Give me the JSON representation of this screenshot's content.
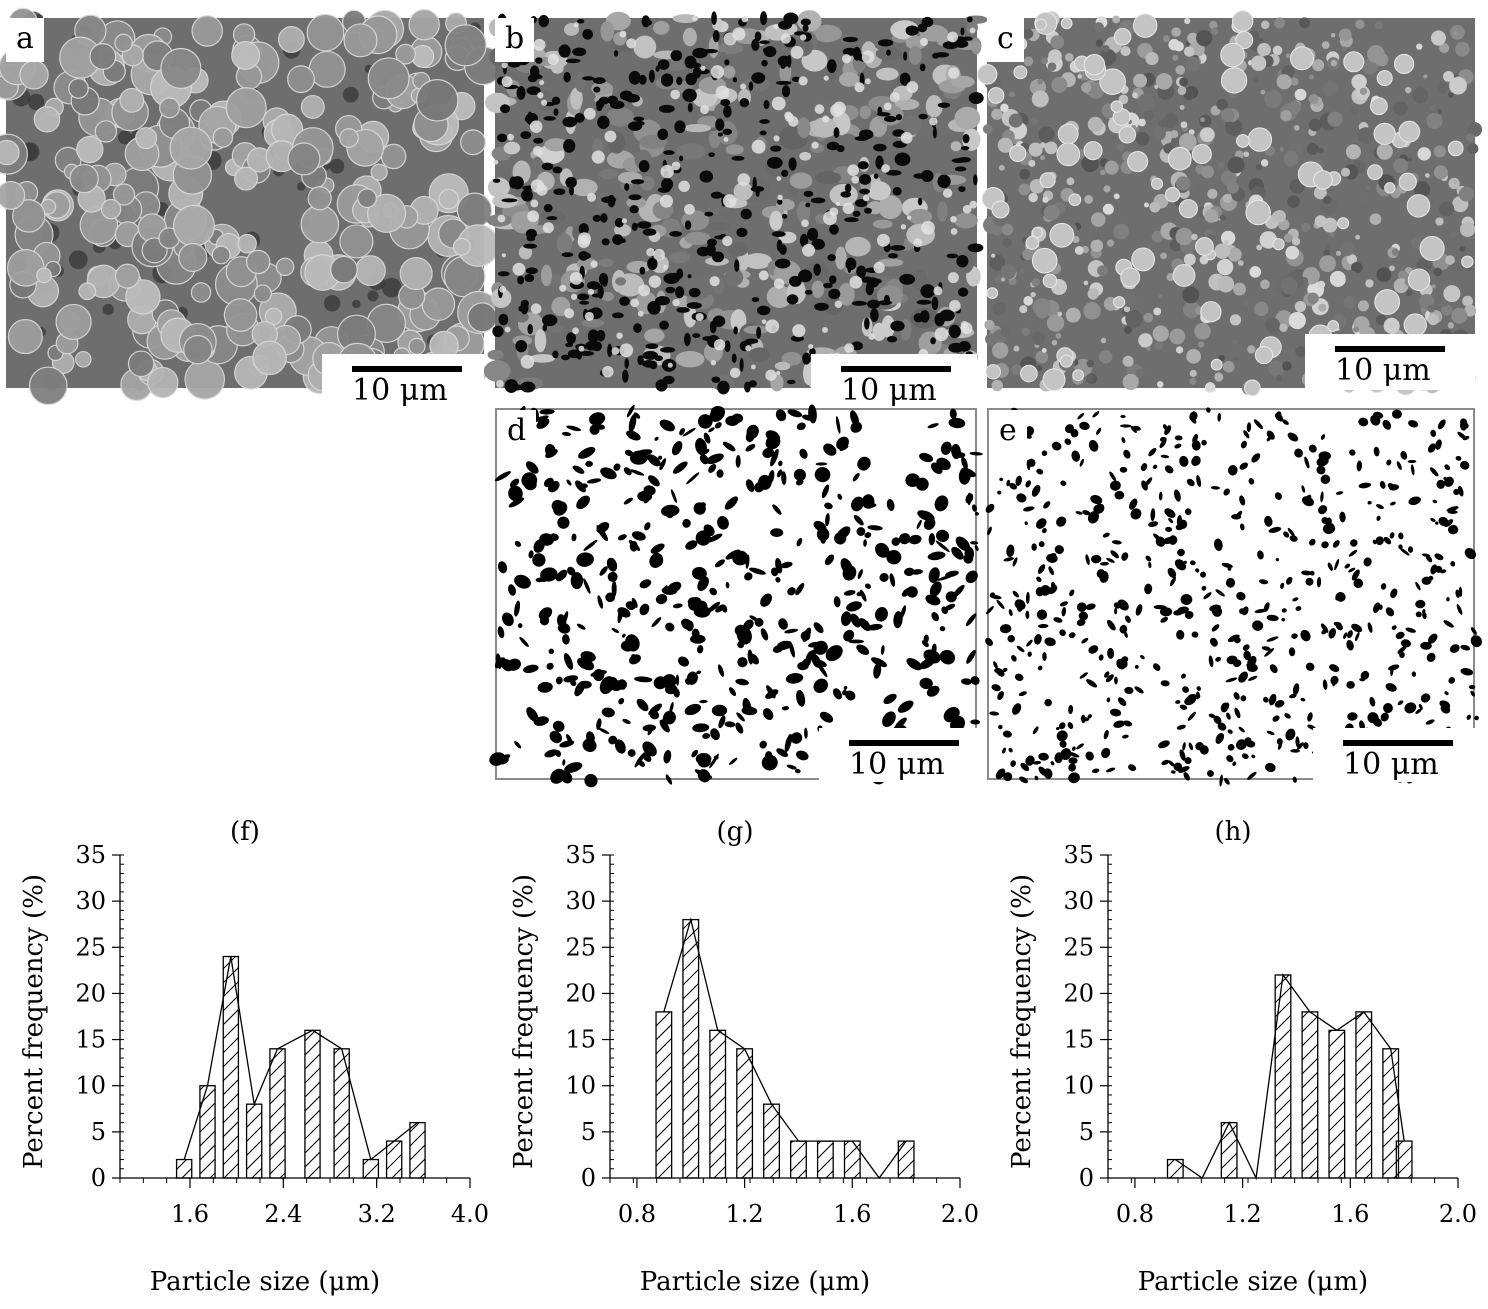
{
  "panels": {
    "a": {
      "letter": "a",
      "scale_label": "10 μm",
      "tone": "#707070",
      "style": "grains"
    },
    "b": {
      "letter": "b",
      "scale_label": "10 μm",
      "tone": "#7a7a7a",
      "style": "porous"
    },
    "c": {
      "letter": "c",
      "scale_label": "10 μm",
      "tone": "#6a6a6a",
      "style": "fine"
    },
    "d": {
      "letter": "d",
      "scale_label": "10 μm",
      "style": "binary_large"
    },
    "e": {
      "letter": "e",
      "scale_label": "10 μm",
      "style": "binary_small"
    }
  },
  "chart_data": [
    {
      "type": "bar",
      "title": "(f)",
      "xlabel": "Particle size (μm)",
      "ylabel": "Percent frequency (%)",
      "xlim": [
        1.0,
        4.0
      ],
      "ylim": [
        0,
        35
      ],
      "xticks": [
        1.6,
        2.4,
        3.2,
        4.0
      ],
      "xtick_labels": [
        "1.6",
        "2.4",
        "3.2",
        "4.0"
      ],
      "yticks": [
        0,
        5,
        10,
        15,
        20,
        25,
        30,
        35
      ],
      "bar_width": 0.13,
      "x": [
        1.55,
        1.75,
        1.95,
        2.15,
        2.35,
        2.65,
        2.9,
        3.15,
        3.35,
        3.55
      ],
      "values": [
        2,
        10,
        24,
        8,
        14,
        16,
        14,
        2,
        4,
        6
      ]
    },
    {
      "type": "bar",
      "title": "(g)",
      "xlabel": "Particle size (μm)",
      "ylabel": "Percent frequency (%)",
      "xlim": [
        0.7,
        2.0
      ],
      "ylim": [
        0,
        35
      ],
      "xticks": [
        0.8,
        1.2,
        1.6,
        2.0
      ],
      "xtick_labels": [
        "0.8",
        "1.2",
        "1.6",
        "2.0"
      ],
      "yticks": [
        0,
        5,
        10,
        15,
        20,
        25,
        30,
        35
      ],
      "bar_width": 0.058,
      "x": [
        0.9,
        1.0,
        1.1,
        1.2,
        1.3,
        1.4,
        1.5,
        1.6,
        1.7,
        1.8
      ],
      "values": [
        18,
        28,
        16,
        14,
        8,
        4,
        4,
        4,
        0,
        4
      ]
    },
    {
      "type": "bar",
      "title": "(h)",
      "xlabel": "Particle size (μm)",
      "ylabel": "Percent frequency (%)",
      "xlim": [
        0.7,
        2.0
      ],
      "ylim": [
        0,
        35
      ],
      "xticks": [
        0.8,
        1.2,
        1.6,
        2.0
      ],
      "xtick_labels": [
        "0.8",
        "1.2",
        "1.6",
        "2.0"
      ],
      "yticks": [
        0,
        5,
        10,
        15,
        20,
        25,
        30,
        35
      ],
      "bar_width": 0.058,
      "x": [
        0.95,
        1.05,
        1.15,
        1.25,
        1.35,
        1.45,
        1.55,
        1.65,
        1.75,
        1.8
      ],
      "values": [
        2,
        0,
        6,
        0,
        22,
        18,
        16,
        18,
        14,
        4
      ]
    }
  ]
}
